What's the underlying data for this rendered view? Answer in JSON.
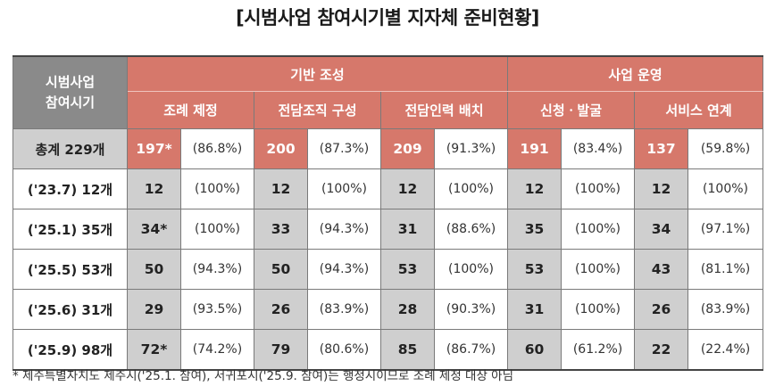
{
  "title": "[시범사업 참여시기별 지자체 준비현황]",
  "header": {
    "row_header": [
      "시범사업",
      "참여시기"
    ],
    "groups": [
      "기반 조성",
      "사업 운영"
    ],
    "subheaders": [
      "조례 제정",
      "전담조직 구성",
      "전담인력 배치",
      "신청ㆍ발굴",
      "서비스 연계"
    ]
  },
  "rows": [
    {
      "label": "총계 229개",
      "cells": [
        [
          "197*",
          "(86.8%)"
        ],
        [
          "200",
          "(87.3%)"
        ],
        [
          "209",
          "(91.3%)"
        ],
        [
          "191",
          "(83.4%)"
        ],
        [
          "137",
          "(59.8%)"
        ]
      ]
    },
    {
      "label": "('23.7) 12개",
      "cells": [
        [
          "12",
          "(100%)"
        ],
        [
          "12",
          "(100%)"
        ],
        [
          "12",
          "(100%)"
        ],
        [
          "12",
          "(100%)"
        ],
        [
          "12",
          "(100%)"
        ]
      ]
    },
    {
      "label": "('25.1) 35개",
      "cells": [
        [
          "34*",
          "(100%)"
        ],
        [
          "33",
          "(94.3%)"
        ],
        [
          "31",
          "(88.6%)"
        ],
        [
          "35",
          "(100%)"
        ],
        [
          "34",
          "(97.1%)"
        ]
      ]
    },
    {
      "label": "('25.5) 53개",
      "cells": [
        [
          "50",
          "(94.3%)"
        ],
        [
          "50",
          "(94.3%)"
        ],
        [
          "53",
          "(100%)"
        ],
        [
          "53",
          "(100%)"
        ],
        [
          "43",
          "(81.1%)"
        ]
      ]
    },
    {
      "label": "('25.6) 31개",
      "cells": [
        [
          "29",
          "(93.5%)"
        ],
        [
          "26",
          "(83.9%)"
        ],
        [
          "28",
          "(90.3%)"
        ],
        [
          "31",
          "(100%)"
        ],
        [
          "26",
          "(83.9%)"
        ]
      ]
    },
    {
      "label": "('25.9) 98개",
      "cells": [
        [
          "72*",
          "(74.2%)"
        ],
        [
          "79",
          "(80.6%)"
        ],
        [
          "85",
          "(86.7%)"
        ],
        [
          "60",
          "(61.2%)"
        ],
        [
          "22",
          "(22.4%)"
        ]
      ]
    }
  ],
  "footnote": "* 제주특별자치도 제주시('25.1. 참여), 서귀포시('25.9. 참여)는 행정시이므로 조례 제정 대상 아님",
  "colors": {
    "accent": "#d6786b",
    "header_gray": "#8a8a8a",
    "cell_gray": "#cfcfcf"
  }
}
